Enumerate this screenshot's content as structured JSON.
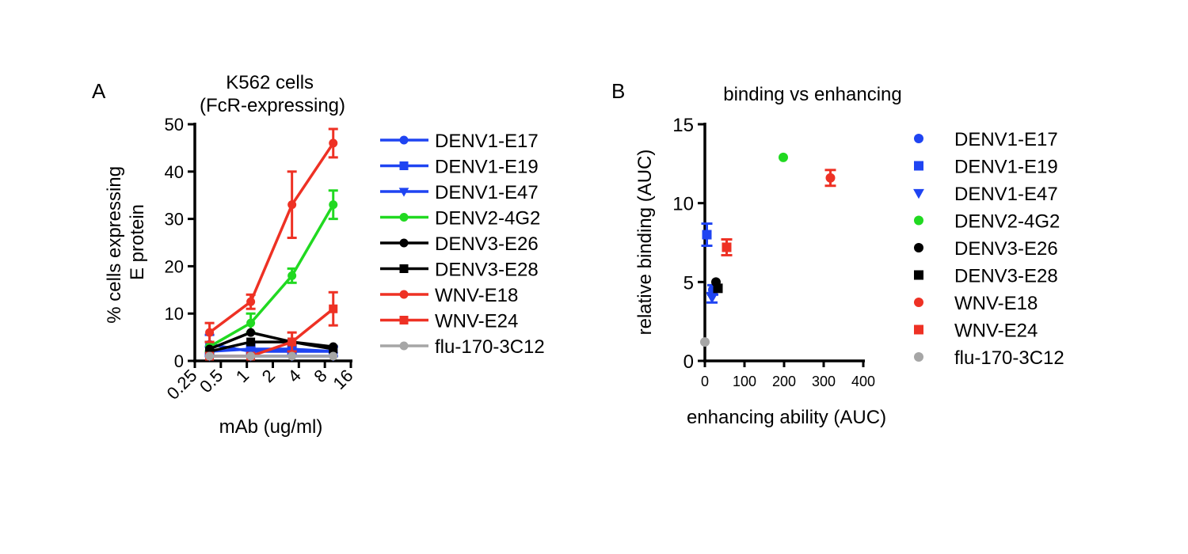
{
  "colors": {
    "blue": "#1f44f2",
    "green": "#21d921",
    "black": "#000000",
    "red": "#ee3124",
    "gray": "#a6a6a6"
  },
  "chart_data": [
    {
      "panel_label": "A",
      "type": "line",
      "title": "K562 cells\n(FcR-expressing)",
      "title_lines": [
        "K562 cells",
        "(FcR-expressing)"
      ],
      "xlabel": "mAb (ug/ml)",
      "ylabel_lines": [
        "% cells expressing",
        "E protein"
      ],
      "x_scale": "log2",
      "x_ticks": [
        0.25,
        0.5,
        1,
        2,
        4,
        8,
        16
      ],
      "x_tick_labels": [
        "0.25",
        "0.5",
        "1",
        "2",
        "4",
        "8",
        "16"
      ],
      "x": [
        0.37,
        1.11,
        3.33,
        10
      ],
      "ylim": [
        0,
        50
      ],
      "y_ticks": [
        0,
        10,
        20,
        30,
        40,
        50
      ],
      "y_tick_labels": [
        "0",
        "10",
        "20",
        "30",
        "40",
        "50"
      ],
      "legend_position": "right",
      "series": [
        {
          "name": "DENV1-E17",
          "color": "#1f44f2",
          "marker": "circle",
          "values": [
            3.5,
            2.0,
            2.0,
            2.0
          ],
          "errors": [
            2.0,
            1.0,
            1.0,
            1.0
          ]
        },
        {
          "name": "DENV1-E19",
          "color": "#1f44f2",
          "marker": "square",
          "values": [
            2.0,
            2.5,
            2.5,
            2.0
          ],
          "errors": [
            1.0,
            1.0,
            1.0,
            1.0
          ]
        },
        {
          "name": "DENV1-E47",
          "color": "#1f44f2",
          "marker": "triangle-down",
          "values": [
            1.0,
            1.0,
            1.0,
            1.0
          ],
          "errors": [
            0.5,
            0.5,
            0.5,
            0.5
          ]
        },
        {
          "name": "DENV2-4G2",
          "color": "#21d921",
          "marker": "circle",
          "values": [
            3.0,
            8.0,
            18.0,
            33.0
          ],
          "errors": [
            1.0,
            2.0,
            1.5,
            3.0
          ]
        },
        {
          "name": "DENV3-E26",
          "color": "#000000",
          "marker": "circle",
          "values": [
            2.5,
            6.0,
            4.0,
            3.0
          ],
          "errors": [
            0.5,
            0.5,
            0.5,
            0.5
          ]
        },
        {
          "name": "DENV3-E28",
          "color": "#000000",
          "marker": "square",
          "values": [
            2.0,
            4.0,
            4.0,
            2.5
          ],
          "errors": [
            0.5,
            0.5,
            0.5,
            0.5
          ]
        },
        {
          "name": "WNV-E18",
          "color": "#ee3124",
          "marker": "circle",
          "values": [
            6.0,
            12.5,
            33.0,
            46.0
          ],
          "errors": [
            2.0,
            1.5,
            7.0,
            3.0
          ]
        },
        {
          "name": "WNV-E24",
          "color": "#ee3124",
          "marker": "square",
          "values": [
            1.0,
            1.0,
            4.0,
            11.0
          ],
          "errors": [
            0.5,
            0.5,
            2.0,
            3.5
          ]
        },
        {
          "name": "flu-170-3C12",
          "color": "#a6a6a6",
          "marker": "circle",
          "values": [
            1.0,
            1.0,
            1.0,
            1.0
          ],
          "errors": [
            0.5,
            0.5,
            0.5,
            0.5
          ]
        }
      ]
    },
    {
      "panel_label": "B",
      "type": "scatter",
      "title": "binding vs enhancing",
      "xlabel": "enhancing ability (AUC)",
      "ylabel": "relative binding (AUC)",
      "xlim": [
        0,
        400
      ],
      "x_ticks": [
        0,
        100,
        200,
        300,
        400
      ],
      "x_tick_labels": [
        "0",
        "100",
        "200",
        "300",
        "400"
      ],
      "ylim": [
        0,
        15
      ],
      "y_ticks": [
        0,
        5,
        10,
        15
      ],
      "y_tick_labels": [
        "0",
        "5",
        "10",
        "15"
      ],
      "legend_position": "right",
      "series": [
        {
          "name": "DENV1-E17",
          "color": "#1f44f2",
          "marker": "circle",
          "x": 20,
          "y": 4.5,
          "error": 0.3
        },
        {
          "name": "DENV1-E19",
          "color": "#1f44f2",
          "marker": "square",
          "x": 5,
          "y": 8.0,
          "error": 0.7
        },
        {
          "name": "DENV1-E47",
          "color": "#1f44f2",
          "marker": "triangle-down",
          "x": 18,
          "y": 4.0,
          "error": 0.3
        },
        {
          "name": "DENV2-4G2",
          "color": "#21d921",
          "marker": "circle",
          "x": 198,
          "y": 12.9,
          "error": 0
        },
        {
          "name": "DENV3-E26",
          "color": "#000000",
          "marker": "circle",
          "x": 28,
          "y": 5.0,
          "error": 0
        },
        {
          "name": "DENV3-E28",
          "color": "#000000",
          "marker": "square",
          "x": 33,
          "y": 4.6,
          "error": 0
        },
        {
          "name": "WNV-E18",
          "color": "#ee3124",
          "marker": "circle",
          "x": 317,
          "y": 11.6,
          "error": 0.5
        },
        {
          "name": "WNV-E24",
          "color": "#ee3124",
          "marker": "square",
          "x": 55,
          "y": 7.2,
          "error": 0.5
        },
        {
          "name": "flu-170-3C12",
          "color": "#a6a6a6",
          "marker": "circle",
          "x": 0,
          "y": 1.2,
          "error": 0
        }
      ]
    }
  ]
}
